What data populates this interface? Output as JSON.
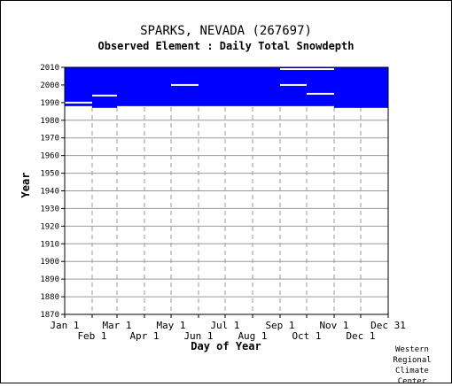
{
  "chart_data": {
    "type": "heatmap",
    "title": "SPARKS, NEVADA   (267697)",
    "subtitle": "Observed Element : Daily Total Snowdepth",
    "xlabel": "Day of Year",
    "ylabel": "Year",
    "ylim": [
      1870,
      2010
    ],
    "yticks": [
      2010,
      2000,
      1990,
      1980,
      1970,
      1960,
      1950,
      1940,
      1930,
      1920,
      1910,
      1900,
      1890,
      1880,
      1870
    ],
    "xlim": [
      1,
      366
    ],
    "month_ticks": [
      {
        "label": "Jan 1",
        "day": 1,
        "row": "top"
      },
      {
        "label": "Feb 1",
        "day": 32,
        "row": "bottom"
      },
      {
        "label": "Mar 1",
        "day": 60,
        "row": "top"
      },
      {
        "label": "Apr 1",
        "day": 91,
        "row": "bottom"
      },
      {
        "label": "May 1",
        "day": 121,
        "row": "top"
      },
      {
        "label": "Jun 1",
        "day": 152,
        "row": "bottom"
      },
      {
        "label": "Jul 1",
        "day": 182,
        "row": "top"
      },
      {
        "label": "Aug 1",
        "day": 213,
        "row": "bottom"
      },
      {
        "label": "Sep 1",
        "day": 244,
        "row": "top"
      },
      {
        "label": "Oct 1",
        "day": 274,
        "row": "bottom"
      },
      {
        "label": "Nov 1",
        "day": 305,
        "row": "top"
      },
      {
        "label": "Dec 1",
        "day": 335,
        "row": "bottom"
      },
      {
        "label": "Dec 31",
        "day": 366,
        "row": "top"
      }
    ],
    "data_color": "#0000ff",
    "coverage": [
      {
        "start_day": 1,
        "end_day": 32,
        "start_year": 1988,
        "end_year": 2010
      },
      {
        "start_day": 32,
        "end_day": 60,
        "start_year": 1987,
        "end_year": 2010
      },
      {
        "start_day": 60,
        "end_day": 305,
        "start_year": 1988,
        "end_year": 2010
      },
      {
        "start_day": 305,
        "end_day": 366,
        "start_year": 1987,
        "end_year": 2010
      }
    ],
    "gap_segments": [
      {
        "start_day": 1,
        "end_day": 32,
        "year": 1990
      },
      {
        "start_day": 32,
        "end_day": 60,
        "year": 1994
      },
      {
        "start_day": 121,
        "end_day": 152,
        "year": 2000
      },
      {
        "start_day": 244,
        "end_day": 274,
        "year": 2000
      },
      {
        "start_day": 274,
        "end_day": 305,
        "year": 1995
      },
      {
        "start_day": 244,
        "end_day": 305,
        "year": 2009
      }
    ],
    "grid": true
  },
  "credit": [
    "Western",
    "Regional",
    "Climate",
    "Center"
  ]
}
